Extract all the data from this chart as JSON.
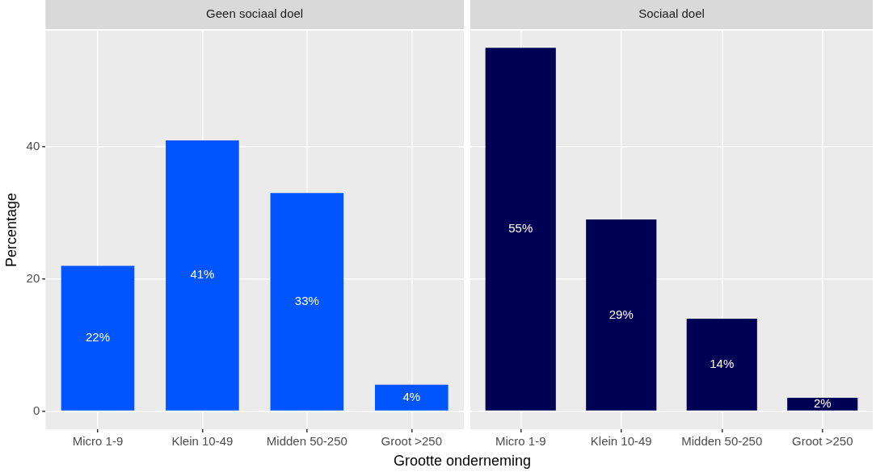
{
  "chart_data": [
    {
      "type": "bar",
      "title": "Geen sociaal doel",
      "xlabel": "Grootte onderneming",
      "ylabel": "Percentage",
      "categories": [
        "Micro 1-9",
        "Klein 10-49",
        "Midden 50-250",
        "Groot >250"
      ],
      "values": [
        22,
        41,
        33,
        4
      ],
      "color": "#0055ff",
      "value_labels": [
        "22%",
        "41%",
        "33%",
        "4%"
      ],
      "ylim": [
        -2.75,
        57.6
      ],
      "yticks": [
        0,
        20,
        40
      ],
      "grid": true,
      "legend": false
    },
    {
      "type": "bar",
      "title": "Sociaal doel",
      "categories": [
        "Micro 1-9",
        "Klein 10-49",
        "Midden 50-250",
        "Groot >250"
      ],
      "values": [
        55,
        29,
        14,
        2
      ],
      "color": "#000055",
      "value_labels": [
        "55%",
        "29%",
        "14%",
        "2%"
      ],
      "ylim": [
        -2.75,
        57.6
      ],
      "yticks": [
        0,
        20,
        40
      ],
      "grid": true,
      "legend": false,
      "tick_labels": "x"
    }
  ]
}
